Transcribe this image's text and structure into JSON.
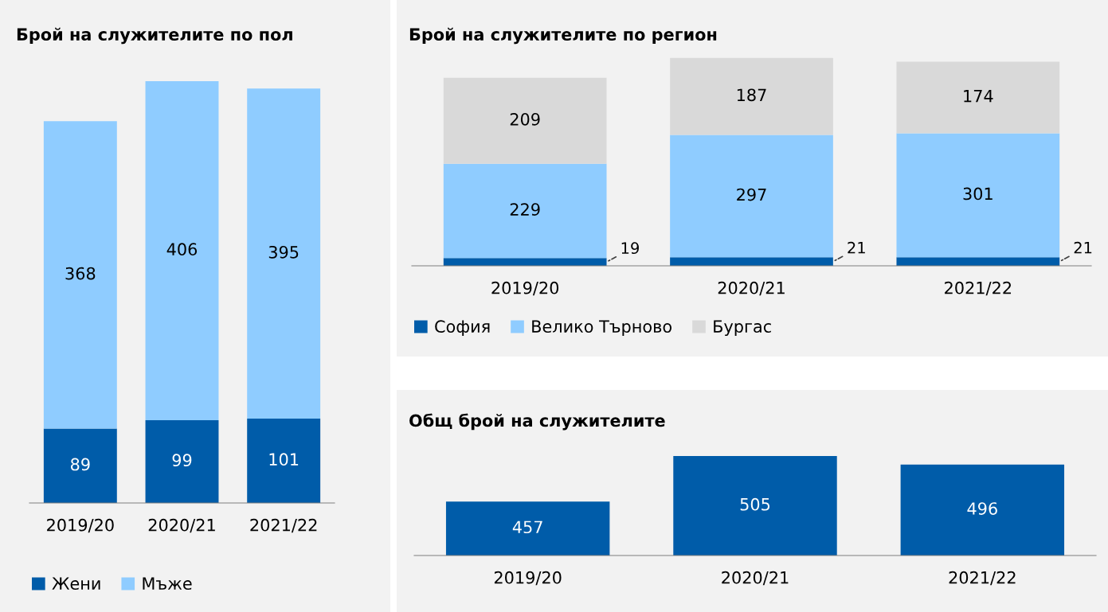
{
  "chart_data": [
    {
      "type": "bar",
      "title": "Брой на служителите по пол",
      "categories": [
        "2019/20",
        "2020/21",
        "2021/22"
      ],
      "stacked": true,
      "data_labels": true,
      "legend": "bottom left",
      "series": [
        {
          "name": "Жени",
          "color": "#005ca9",
          "values": [
            89,
            99,
            101
          ]
        },
        {
          "name": "Мъже",
          "color": "#8fccff",
          "values": [
            368,
            406,
            395
          ]
        }
      ]
    },
    {
      "type": "bar",
      "title": "Брой на служителите по регион",
      "categories": [
        "2019/20",
        "2020/21",
        "2021/22"
      ],
      "stacked": true,
      "data_labels": true,
      "legend": "bottom left",
      "series": [
        {
          "name": "София",
          "color": "#005ca9",
          "values": [
            19,
            21,
            21
          ]
        },
        {
          "name": "Велико Търново",
          "color": "#8fccff",
          "values": [
            229,
            297,
            301
          ]
        },
        {
          "name": "Бургас",
          "color": "#d9d9d9",
          "values": [
            209,
            187,
            174
          ]
        }
      ]
    },
    {
      "type": "bar",
      "title": "Общ брой на служителите",
      "categories": [
        "2019/20",
        "2020/21",
        "2021/22"
      ],
      "data_labels": true,
      "ylim": [
        400,
        505
      ],
      "series": [
        {
          "color": "#005ca9",
          "values": [
            457,
            505,
            496
          ]
        }
      ]
    }
  ]
}
